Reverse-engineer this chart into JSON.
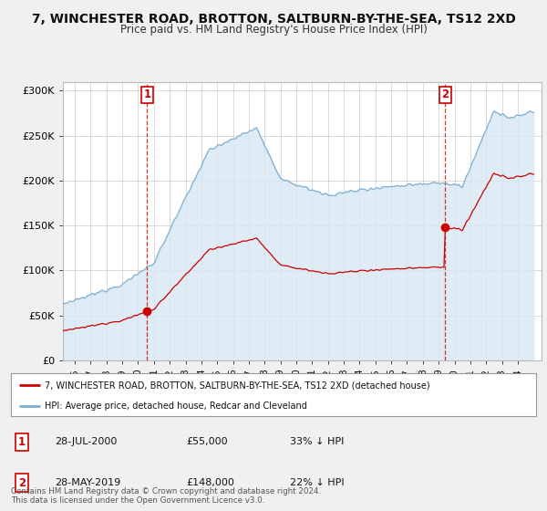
{
  "title": "7, WINCHESTER ROAD, BROTTON, SALTBURN-BY-THE-SEA, TS12 2XD",
  "subtitle": "Price paid vs. HM Land Registry's House Price Index (HPI)",
  "legend_line1": "7, WINCHESTER ROAD, BROTTON, SALTBURN-BY-THE-SEA, TS12 2XD (detached house)",
  "legend_line2": "HPI: Average price, detached house, Redcar and Cleveland",
  "purchase1_date": "28-JUL-2000",
  "purchase1_price": "£55,000",
  "purchase1_hpi": "33% ↓ HPI",
  "purchase1_year": 2000.57,
  "purchase1_value": 55000,
  "purchase2_date": "28-MAY-2019",
  "purchase2_price": "£148,000",
  "purchase2_hpi": "22% ↓ HPI",
  "purchase2_year": 2019.41,
  "purchase2_value": 148000,
  "hpi_color": "#7bafd4",
  "hpi_fill_color": "#d8e8f3",
  "price_color": "#cc0000",
  "marker_color": "#cc0000",
  "vline_color": "#cc0000",
  "background_color": "#f0f0f0",
  "plot_bg_color": "#ffffff",
  "grid_color": "#cccccc",
  "footer": "Contains HM Land Registry data © Crown copyright and database right 2024.\nThis data is licensed under the Open Government Licence v3.0.",
  "ylim": [
    0,
    310000
  ],
  "xlim_start": 1995.25,
  "xlim_end": 2025.5,
  "hpi_data_years": [
    1995.25,
    1995.33,
    1995.42,
    1995.5,
    1995.58,
    1995.67,
    1995.75,
    1995.83,
    1995.92,
    1996.0,
    1996.08,
    1996.17,
    1996.25,
    1996.33,
    1996.42,
    1996.5,
    1996.58,
    1996.67,
    1996.75,
    1996.83,
    1996.92,
    1997.0,
    1997.08,
    1997.17,
    1997.25,
    1997.33,
    1997.42,
    1997.5,
    1997.58,
    1997.67,
    1997.75,
    1997.83,
    1997.92,
    1998.0,
    1998.08,
    1998.17,
    1998.25,
    1998.33,
    1998.42,
    1998.5,
    1998.58,
    1998.67,
    1998.75,
    1998.83,
    1998.92,
    1999.0,
    1999.08,
    1999.17,
    1999.25,
    1999.33,
    1999.42,
    1999.5,
    1999.58,
    1999.67,
    1999.75,
    1999.83,
    1999.92,
    2000.0,
    2000.08,
    2000.17,
    2000.25,
    2000.33,
    2000.42,
    2000.5,
    2000.58,
    2000.67,
    2000.75,
    2000.83,
    2000.92,
    2001.0,
    2001.08,
    2001.17,
    2001.25,
    2001.33,
    2001.42,
    2001.5,
    2001.58,
    2001.67,
    2001.75,
    2001.83,
    2001.92,
    2002.0,
    2002.08,
    2002.17,
    2002.25,
    2002.33,
    2002.42,
    2002.5,
    2002.58,
    2002.67,
    2002.75,
    2002.83,
    2002.92,
    2003.0,
    2003.08,
    2003.17,
    2003.25,
    2003.33,
    2003.42,
    2003.5,
    2003.58,
    2003.67,
    2003.75,
    2003.83,
    2003.92,
    2004.0,
    2004.08,
    2004.17,
    2004.25,
    2004.33,
    2004.42,
    2004.5,
    2004.58,
    2004.67,
    2004.75,
    2004.83,
    2004.92,
    2005.0,
    2005.08,
    2005.17,
    2005.25,
    2005.33,
    2005.42,
    2005.5,
    2005.58,
    2005.67,
    2005.75,
    2005.83,
    2005.92,
    2006.0,
    2006.08,
    2006.17,
    2006.25,
    2006.33,
    2006.42,
    2006.5,
    2006.58,
    2006.67,
    2006.75,
    2006.83,
    2006.92,
    2007.0,
    2007.08,
    2007.17,
    2007.25,
    2007.33,
    2007.42,
    2007.5,
    2007.58,
    2007.67,
    2007.75,
    2007.83,
    2007.92,
    2008.0,
    2008.08,
    2008.17,
    2008.25,
    2008.33,
    2008.42,
    2008.5,
    2008.58,
    2008.67,
    2008.75,
    2008.83,
    2008.92,
    2009.0,
    2009.08,
    2009.17,
    2009.25,
    2009.33,
    2009.42,
    2009.5,
    2009.58,
    2009.67,
    2009.75,
    2009.83,
    2009.92,
    2010.0,
    2010.08,
    2010.17,
    2010.25,
    2010.33,
    2010.42,
    2010.5,
    2010.58,
    2010.67,
    2010.75,
    2010.83,
    2010.92,
    2011.0,
    2011.08,
    2011.17,
    2011.25,
    2011.33,
    2011.42,
    2011.5,
    2011.58,
    2011.67,
    2011.75,
    2011.83,
    2011.92,
    2012.0,
    2012.08,
    2012.17,
    2012.25,
    2012.33,
    2012.42,
    2012.5,
    2012.58,
    2012.67,
    2012.75,
    2012.83,
    2012.92,
    2013.0,
    2013.08,
    2013.17,
    2013.25,
    2013.33,
    2013.42,
    2013.5,
    2013.58,
    2013.67,
    2013.75,
    2013.83,
    2013.92,
    2014.0,
    2014.08,
    2014.17,
    2014.25,
    2014.33,
    2014.42,
    2014.5,
    2014.58,
    2014.67,
    2014.75,
    2014.83,
    2014.92,
    2015.0,
    2015.08,
    2015.17,
    2015.25,
    2015.33,
    2015.42,
    2015.5,
    2015.58,
    2015.67,
    2015.75,
    2015.83,
    2015.92,
    2016.0,
    2016.08,
    2016.17,
    2016.25,
    2016.33,
    2016.42,
    2016.5,
    2016.58,
    2016.67,
    2016.75,
    2016.83,
    2016.92,
    2017.0,
    2017.08,
    2017.17,
    2017.25,
    2017.33,
    2017.42,
    2017.5,
    2017.58,
    2017.67,
    2017.75,
    2017.83,
    2017.92,
    2018.0,
    2018.08,
    2018.17,
    2018.25,
    2018.33,
    2018.42,
    2018.5,
    2018.58,
    2018.67,
    2018.75,
    2018.83,
    2018.92,
    2019.0,
    2019.08,
    2019.17,
    2019.25,
    2019.33,
    2019.42,
    2019.5,
    2019.58,
    2019.67,
    2019.75,
    2019.83,
    2019.92,
    2020.0,
    2020.08,
    2020.17,
    2020.25,
    2020.33,
    2020.42,
    2020.5,
    2020.58,
    2020.67,
    2020.75,
    2020.83,
    2020.92,
    2021.0,
    2021.08,
    2021.17,
    2021.25,
    2021.33,
    2021.42,
    2021.5,
    2021.58,
    2021.67,
    2021.75,
    2021.83,
    2021.92,
    2022.0,
    2022.08,
    2022.17,
    2022.25,
    2022.33,
    2022.42,
    2022.5,
    2022.58,
    2022.67,
    2022.75,
    2022.83,
    2022.92,
    2023.0,
    2023.08,
    2023.17,
    2023.25,
    2023.33,
    2023.42,
    2023.5,
    2023.58,
    2023.67,
    2023.75,
    2023.83,
    2023.92,
    2024.0,
    2024.08,
    2024.17,
    2024.25,
    2024.33,
    2024.42,
    2024.5,
    2024.58,
    2024.67,
    2024.75,
    2024.83,
    2024.92,
    2025.0
  ]
}
